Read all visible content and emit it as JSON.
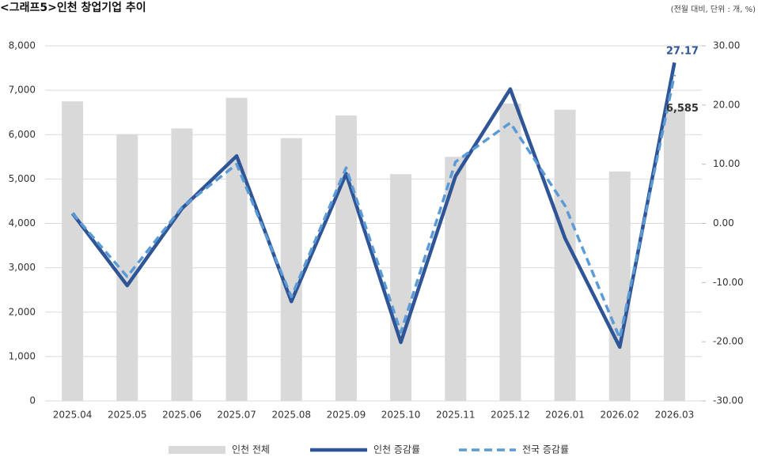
{
  "chart_data": {
    "type": "combo",
    "title": "<그래프5>인천 창업기업 추이",
    "subtitle": "(전월 대비, 단위 : 개, %)",
    "categories": [
      "2025.04",
      "2025.05",
      "2025.06",
      "2025.07",
      "2025.08",
      "2025.09",
      "2025.10",
      "2025.11",
      "2025.12",
      "2026.01",
      "2026.02",
      "2026.03"
    ],
    "series": [
      {
        "name": "인천 전체",
        "type": "bar",
        "color": "#d9d9d9",
        "values": [
          6750,
          6010,
          6140,
          6830,
          5920,
          6430,
          5110,
          5500,
          6700,
          6560,
          5170,
          6585
        ],
        "value_labels": [
          null,
          null,
          null,
          null,
          null,
          null,
          null,
          null,
          null,
          null,
          null,
          "6,585"
        ]
      },
      {
        "name": "인천 증감률",
        "type": "line",
        "axis": "y2",
        "color": "#2f5597",
        "values": [
          1.7,
          -10.5,
          2.5,
          11.4,
          -13.2,
          8.4,
          -20.1,
          8.0,
          22.7,
          -2.5,
          -20.9,
          27.17
        ],
        "value_labels": [
          null,
          null,
          null,
          null,
          null,
          null,
          null,
          null,
          null,
          null,
          null,
          "27.17"
        ]
      },
      {
        "name": "전국 증감률",
        "type": "line",
        "axis": "y2",
        "color": "#5b9bd5",
        "dashed": true,
        "values": [
          1.7,
          -9.0,
          2.7,
          10.0,
          -12.4,
          9.4,
          -18.4,
          10.4,
          17.0,
          3.0,
          -19.4,
          25.1
        ]
      }
    ],
    "ylim": [
      0,
      8000
    ],
    "yticks": [
      {
        "value": 0,
        "label": "0"
      },
      {
        "value": 1000,
        "label": "1,000"
      },
      {
        "value": 2000,
        "label": "2,000"
      },
      {
        "value": 3000,
        "label": "3,000"
      },
      {
        "value": 4000,
        "label": "4,000"
      },
      {
        "value": 5000,
        "label": "5,000"
      },
      {
        "value": 6000,
        "label": "6,000"
      },
      {
        "value": 7000,
        "label": "7,000"
      },
      {
        "value": 8000,
        "label": "8,000"
      }
    ],
    "y2lim": [
      -30,
      30
    ],
    "y2ticks": [
      {
        "value": -30,
        "label": "-30.00"
      },
      {
        "value": -20,
        "label": "-20.00"
      },
      {
        "value": -10,
        "label": "-10.00"
      },
      {
        "value": 0,
        "label": "0.00"
      },
      {
        "value": 10,
        "label": "10.00"
      },
      {
        "value": 20,
        "label": "20.00"
      },
      {
        "value": 30,
        "label": "30.00"
      }
    ],
    "grid": true,
    "legend": "bottom"
  }
}
